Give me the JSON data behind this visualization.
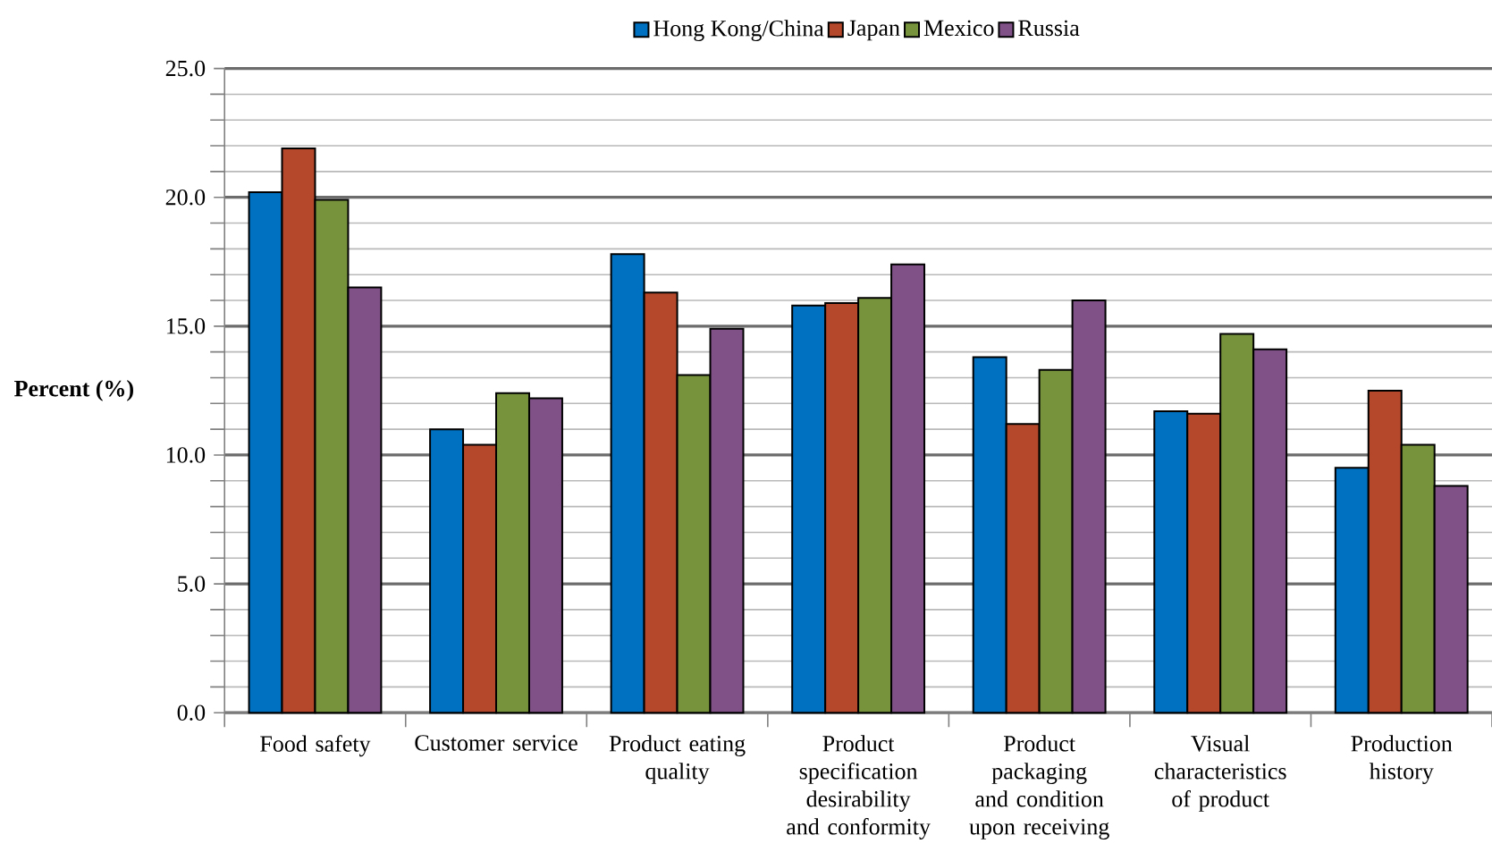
{
  "chart_data": {
    "type": "bar",
    "ylabel": "Percent (%)",
    "categories": [
      "Food safety",
      "Customer service",
      "Product eating quality",
      "Product specification desirability and conformity",
      "Product packaging and condition upon receiving",
      "Visual characteristics of product",
      "Production history"
    ],
    "series": [
      {
        "name": "Hong Kong/China",
        "color": "#0070c0",
        "values": [
          20.2,
          11.0,
          17.8,
          15.8,
          13.8,
          11.7,
          9.5
        ]
      },
      {
        "name": "Japan",
        "color": "#b5472a",
        "values": [
          21.9,
          10.4,
          16.3,
          15.9,
          11.2,
          11.6,
          12.5
        ]
      },
      {
        "name": "Mexico",
        "color": "#77933c",
        "values": [
          19.9,
          12.4,
          13.1,
          16.1,
          13.3,
          14.7,
          10.4
        ]
      },
      {
        "name": "Russia",
        "color": "#7f5187",
        "values": [
          16.5,
          12.2,
          14.9,
          17.4,
          16.0,
          14.1,
          8.8
        ]
      }
    ],
    "ylim": [
      0,
      25
    ],
    "yticks": [
      {
        "value": 0,
        "label": "0.0"
      },
      {
        "value": 5,
        "label": "5.0"
      },
      {
        "value": 10,
        "label": "10.0"
      },
      {
        "value": 15,
        "label": "15.0"
      },
      {
        "value": 20,
        "label": "20.0"
      },
      {
        "value": 25,
        "label": "25.0"
      }
    ],
    "grid": "y",
    "legend": "top"
  }
}
